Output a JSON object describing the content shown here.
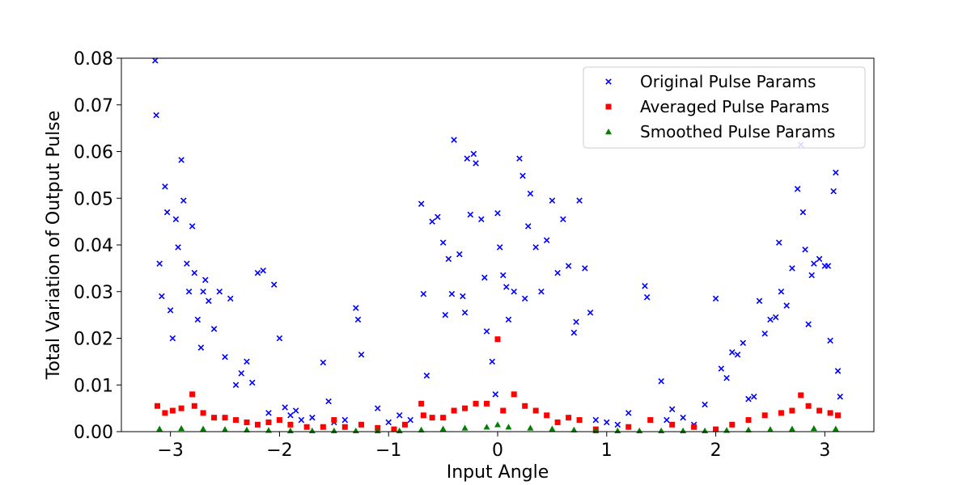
{
  "chart_data": {
    "type": "scatter",
    "title": "",
    "xlabel": "Input Angle",
    "ylabel": "Total Variation of Output Pulse",
    "xlim": [
      -3.45,
      3.45
    ],
    "ylim": [
      0,
      0.08
    ],
    "x_ticks": [
      -3,
      -2,
      -1,
      0,
      1,
      2,
      3
    ],
    "x_tick_labels": [
      "−3",
      "−2",
      "−1",
      "0",
      "1",
      "2",
      "3"
    ],
    "y_ticks": [
      0.0,
      0.01,
      0.02,
      0.03,
      0.04,
      0.05,
      0.06,
      0.07,
      0.08
    ],
    "y_tick_labels": [
      "0.00",
      "0.01",
      "0.02",
      "0.03",
      "0.04",
      "0.05",
      "0.06",
      "0.07",
      "0.08"
    ],
    "grid": false,
    "legend_position": "top-right",
    "series": [
      {
        "name": "Original Pulse Params",
        "marker": "x",
        "color": "#0000ff",
        "x": [
          -3.14,
          -3.13,
          -3.1,
          -3.08,
          -3.05,
          -3.03,
          -3.0,
          -2.98,
          -2.95,
          -2.93,
          -2.9,
          -2.88,
          -2.85,
          -2.83,
          -2.8,
          -2.78,
          -2.75,
          -2.72,
          -2.7,
          -2.68,
          -2.65,
          -2.6,
          -2.55,
          -2.5,
          -2.45,
          -2.4,
          -2.35,
          -2.3,
          -2.25,
          -2.2,
          -2.15,
          -2.1,
          -2.05,
          -2.0,
          -1.95,
          -1.9,
          -1.85,
          -1.8,
          -1.7,
          -1.6,
          -1.55,
          -1.5,
          -1.4,
          -1.3,
          -1.28,
          -1.25,
          -1.1,
          -1.0,
          -0.9,
          -0.8,
          -0.7,
          -0.68,
          -0.65,
          -0.6,
          -0.55,
          -0.5,
          -0.48,
          -0.45,
          -0.42,
          -0.4,
          -0.35,
          -0.32,
          -0.3,
          -0.28,
          -0.25,
          -0.22,
          -0.2,
          -0.15,
          -0.12,
          -0.1,
          -0.05,
          -0.02,
          0.0,
          0.02,
          0.05,
          0.08,
          0.1,
          0.15,
          0.2,
          0.23,
          0.25,
          0.28,
          0.3,
          0.35,
          0.4,
          0.45,
          0.5,
          0.55,
          0.6,
          0.65,
          0.7,
          0.72,
          0.75,
          0.8,
          0.85,
          0.9,
          1.0,
          1.1,
          1.2,
          1.35,
          1.37,
          1.5,
          1.55,
          1.6,
          1.7,
          1.8,
          1.9,
          2.0,
          2.05,
          2.1,
          2.15,
          2.2,
          2.25,
          2.3,
          2.35,
          2.4,
          2.45,
          2.5,
          2.55,
          2.58,
          2.6,
          2.65,
          2.7,
          2.75,
          2.78,
          2.8,
          2.82,
          2.85,
          2.88,
          2.9,
          2.95,
          3.0,
          3.03,
          3.05,
          3.08,
          3.1,
          3.12,
          3.14
        ],
        "y": [
          0.0795,
          0.0678,
          0.036,
          0.029,
          0.0525,
          0.047,
          0.026,
          0.02,
          0.0455,
          0.0395,
          0.0582,
          0.0495,
          0.036,
          0.03,
          0.044,
          0.034,
          0.024,
          0.018,
          0.03,
          0.0325,
          0.028,
          0.022,
          0.03,
          0.016,
          0.0285,
          0.01,
          0.0125,
          0.015,
          0.0105,
          0.034,
          0.0345,
          0.004,
          0.0315,
          0.02,
          0.0052,
          0.0035,
          0.0045,
          0.0025,
          0.003,
          0.0148,
          0.0065,
          0.002,
          0.0025,
          0.0265,
          0.024,
          0.0165,
          0.005,
          0.002,
          0.0035,
          0.0025,
          0.0488,
          0.0295,
          0.012,
          0.045,
          0.046,
          0.0405,
          0.025,
          0.037,
          0.0295,
          0.0625,
          0.038,
          0.029,
          0.0255,
          0.0585,
          0.0465,
          0.0595,
          0.0575,
          0.0455,
          0.033,
          0.0215,
          0.015,
          0.008,
          0.0468,
          0.0395,
          0.0335,
          0.031,
          0.024,
          0.03,
          0.0585,
          0.0548,
          0.0285,
          0.044,
          0.051,
          0.0395,
          0.03,
          0.041,
          0.0495,
          0.034,
          0.0455,
          0.0355,
          0.0212,
          0.0235,
          0.0495,
          0.035,
          0.0255,
          0.0025,
          0.002,
          0.0015,
          0.004,
          0.0312,
          0.0288,
          0.0108,
          0.0025,
          0.0048,
          0.003,
          0.0015,
          0.0058,
          0.0285,
          0.0135,
          0.0115,
          0.017,
          0.0165,
          0.019,
          0.007,
          0.0075,
          0.028,
          0.021,
          0.024,
          0.0245,
          0.0405,
          0.03,
          0.027,
          0.035,
          0.052,
          0.0615,
          0.047,
          0.039,
          0.023,
          0.0335,
          0.036,
          0.037,
          0.0355,
          0.0355,
          0.0195,
          0.0515,
          0.0555,
          0.013,
          0.0075
        ]
      },
      {
        "name": "Averaged Pulse Params",
        "marker": "square",
        "color": "#ff0000",
        "x": [
          -3.12,
          -3.05,
          -2.98,
          -2.9,
          -2.8,
          -2.78,
          -2.7,
          -2.6,
          -2.5,
          -2.4,
          -2.3,
          -2.2,
          -2.1,
          -2.0,
          -1.9,
          -1.75,
          -1.6,
          -1.5,
          -1.4,
          -1.25,
          -1.1,
          -0.95,
          -0.85,
          -0.7,
          -0.68,
          -0.6,
          -0.5,
          -0.4,
          -0.3,
          -0.2,
          -0.1,
          0.0,
          0.05,
          0.15,
          0.25,
          0.35,
          0.45,
          0.55,
          0.65,
          0.75,
          0.9,
          1.2,
          1.4,
          1.6,
          1.8,
          2.0,
          2.15,
          2.3,
          2.45,
          2.6,
          2.7,
          2.78,
          2.85,
          2.95,
          3.05,
          3.12
        ],
        "y": [
          0.0055,
          0.004,
          0.0045,
          0.005,
          0.008,
          0.0055,
          0.004,
          0.003,
          0.003,
          0.0025,
          0.002,
          0.0015,
          0.002,
          0.0025,
          0.0015,
          0.001,
          0.001,
          0.0025,
          0.001,
          0.0015,
          0.0008,
          0.0005,
          0.0015,
          0.006,
          0.0035,
          0.003,
          0.003,
          0.0045,
          0.005,
          0.006,
          0.006,
          0.0198,
          0.0045,
          0.008,
          0.0055,
          0.0045,
          0.0035,
          0.002,
          0.003,
          0.0025,
          0.0005,
          0.001,
          0.0025,
          0.0015,
          0.001,
          0.0005,
          0.0015,
          0.0025,
          0.0035,
          0.004,
          0.0045,
          0.0078,
          0.0055,
          0.0045,
          0.004,
          0.0035
        ]
      },
      {
        "name": "Smoothed Pulse Params",
        "marker": "triangle",
        "color": "#008000",
        "x": [
          -3.1,
          -2.9,
          -2.7,
          -2.5,
          -2.3,
          -2.1,
          -1.9,
          -1.7,
          -1.5,
          -1.3,
          -1.1,
          -0.9,
          -0.7,
          -0.5,
          -0.3,
          -0.1,
          0.0,
          0.1,
          0.3,
          0.5,
          0.7,
          0.9,
          1.1,
          1.3,
          1.5,
          1.7,
          1.9,
          2.1,
          2.3,
          2.5,
          2.7,
          2.9,
          3.1
        ],
        "y": [
          0.0006,
          0.0007,
          0.0006,
          0.0005,
          0.0004,
          0.0003,
          0.0002,
          0.0002,
          0.0002,
          0.0002,
          0.0002,
          0.0002,
          0.0004,
          0.0006,
          0.0008,
          0.001,
          0.0015,
          0.001,
          0.0008,
          0.0006,
          0.0004,
          0.0002,
          0.0002,
          0.0002,
          0.0002,
          0.0002,
          0.0002,
          0.0003,
          0.0004,
          0.0005,
          0.0006,
          0.0007,
          0.0006
        ]
      }
    ]
  }
}
